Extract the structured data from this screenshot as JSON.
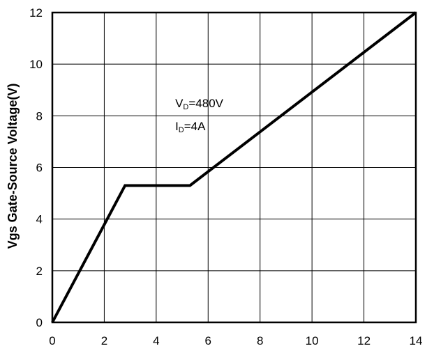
{
  "chart_data": {
    "type": "line",
    "title": "",
    "xlabel": "",
    "ylabel": "Vgs Gate-Source Voltage(V)",
    "xlim": [
      0,
      14
    ],
    "ylim": [
      0,
      12
    ],
    "xticks": [
      0,
      2,
      4,
      6,
      8,
      10,
      12,
      14
    ],
    "yticks": [
      0,
      2,
      4,
      6,
      8,
      10,
      12
    ],
    "grid": true,
    "legend": "none",
    "line_color": "#000000",
    "series": [
      {
        "x": [
          0,
          2.8,
          5.3,
          14
        ],
        "y": [
          0,
          5.3,
          5.3,
          12
        ]
      }
    ],
    "annotations": [
      {
        "main": "V",
        "sub": "D",
        "rest": "=480V",
        "x": 5.0,
        "y": 8.5
      },
      {
        "main": "I",
        "sub": "D",
        "rest": "=4A",
        "x": 5.0,
        "y": 7.6
      }
    ]
  }
}
